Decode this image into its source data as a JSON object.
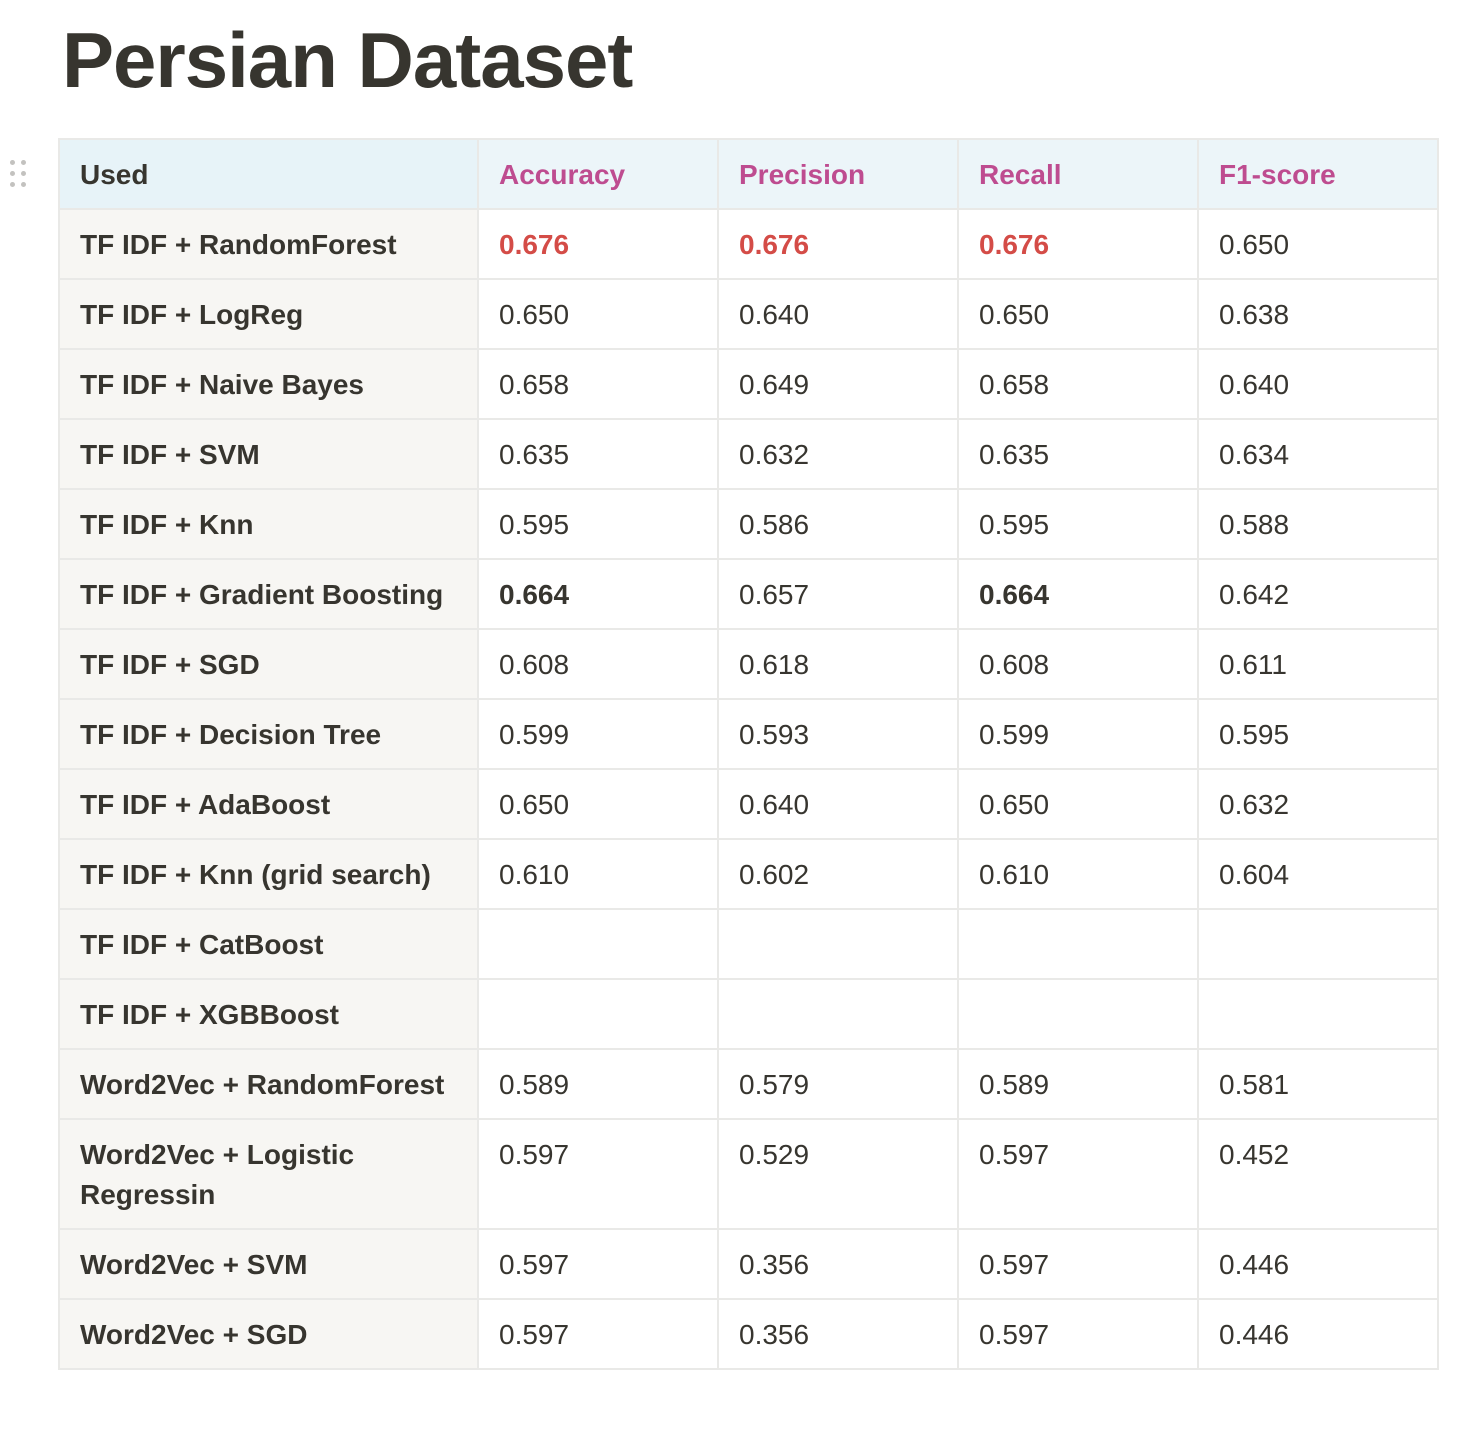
{
  "page": {
    "title": "Persian Dataset"
  },
  "colors": {
    "header_bg": "#e7f3f8",
    "first_column_bg": "#f7f6f3",
    "metric_header_text": "#ad1a72",
    "highlight_red": "#d44c47",
    "text": "#37352f"
  },
  "table": {
    "headers": [
      "Used",
      "Accuracy",
      "Precision",
      "Recall",
      "F1-score"
    ],
    "rows": [
      {
        "used": "TF IDF + RandomForest",
        "accuracy": "0.676",
        "precision": "0.676",
        "recall": "0.676",
        "f1": "0.650",
        "style": [
          "red",
          "red",
          "red",
          ""
        ]
      },
      {
        "used": "TF IDF + LogReg",
        "accuracy": "0.650",
        "precision": "0.640",
        "recall": "0.650",
        "f1": "0.638",
        "style": [
          "",
          "",
          "",
          ""
        ]
      },
      {
        "used": "TF IDF + Naive Bayes",
        "accuracy": "0.658",
        "precision": "0.649",
        "recall": "0.658",
        "f1": "0.640",
        "style": [
          "",
          "",
          "",
          ""
        ]
      },
      {
        "used": "TF IDF + SVM",
        "accuracy": "0.635",
        "precision": "0.632",
        "recall": "0.635",
        "f1": "0.634",
        "style": [
          "",
          "",
          "",
          ""
        ]
      },
      {
        "used": "TF IDF + Knn",
        "accuracy": "0.595",
        "precision": "0.586",
        "recall": "0.595",
        "f1": "0.588",
        "style": [
          "",
          "",
          "",
          ""
        ]
      },
      {
        "used": "TF IDF + Gradient Boosting",
        "accuracy": "0.664",
        "precision": "0.657",
        "recall": "0.664",
        "f1": "0.642",
        "style": [
          "bold",
          "",
          "bold",
          ""
        ]
      },
      {
        "used": "TF IDF + SGD",
        "accuracy": "0.608",
        "precision": "0.618",
        "recall": "0.608",
        "f1": "0.611",
        "style": [
          "",
          "",
          "",
          ""
        ]
      },
      {
        "used": "TF IDF + Decision Tree",
        "accuracy": "0.599",
        "precision": "0.593",
        "recall": "0.599",
        "f1": "0.595",
        "style": [
          "",
          "",
          "",
          ""
        ]
      },
      {
        "used": "TF IDF + AdaBoost",
        "accuracy": "0.650",
        "precision": "0.640",
        "recall": "0.650",
        "f1": "0.632",
        "style": [
          "",
          "",
          "",
          ""
        ]
      },
      {
        "used": "TF IDF + Knn (grid search)",
        "accuracy": "0.610",
        "precision": "0.602",
        "recall": "0.610",
        "f1": "0.604",
        "style": [
          "",
          "",
          "",
          ""
        ]
      },
      {
        "used": "TF IDF + CatBoost",
        "accuracy": "",
        "precision": "",
        "recall": "",
        "f1": "",
        "style": [
          "",
          "",
          "",
          ""
        ]
      },
      {
        "used": "TF IDF + XGBBoost",
        "accuracy": "",
        "precision": "",
        "recall": "",
        "f1": "",
        "style": [
          "",
          "",
          "",
          ""
        ]
      },
      {
        "used": "Word2Vec + RandomForest",
        "accuracy": "0.589",
        "precision": "0.579",
        "recall": "0.589",
        "f1": "0.581",
        "style": [
          "",
          "",
          "",
          ""
        ]
      },
      {
        "used": "Word2Vec + Logistic Regressin",
        "accuracy": "0.597",
        "precision": "0.529",
        "recall": "0.597",
        "f1": "0.452",
        "style": [
          "",
          "",
          "",
          ""
        ],
        "tall": true
      },
      {
        "used": "Word2Vec + SVM",
        "accuracy": "0.597",
        "precision": "0.356",
        "recall": "0.597",
        "f1": "0.446",
        "style": [
          "",
          "",
          "",
          ""
        ]
      },
      {
        "used": "Word2Vec + SGD",
        "accuracy": "0.597",
        "precision": "0.356",
        "recall": "0.597",
        "f1": "0.446",
        "style": [
          "",
          "",
          "",
          ""
        ]
      }
    ]
  }
}
